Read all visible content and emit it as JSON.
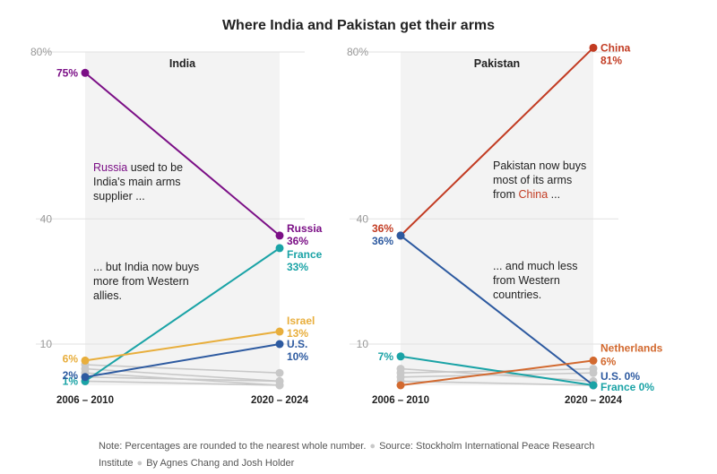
{
  "title": "Where India and Pakistan get their arms",
  "note": {
    "text": "Note: Percentages are rounded to the nearest whole number.",
    "source": "Source: Stockholm International Peace Research Institute",
    "byline": "By Agnes Chang and Josh Holder"
  },
  "colors": {
    "russia": "#7b0f86",
    "france": "#1aa3a6",
    "israel": "#e8ae3c",
    "us": "#2d5aa0",
    "china": "#c23b22",
    "netherlands": "#d2692f",
    "other": "#c8c8c8",
    "panel_bg": "#f3f3f3"
  },
  "chart_data": [
    {
      "type": "line",
      "subtitle": "India",
      "x": [
        "2006 – 2010",
        "2020 – 2024"
      ],
      "y_ticks": [
        "80%",
        "40",
        "10"
      ],
      "ylim": [
        0,
        80
      ],
      "series": [
        {
          "name": "Russia",
          "values": [
            75,
            36
          ],
          "start_label": "75%",
          "end_label": "Russia",
          "end_value_label": "36%",
          "color_key": "russia",
          "highlight": true
        },
        {
          "name": "France",
          "values": [
            1,
            33
          ],
          "start_label": "1%",
          "end_label": "France",
          "end_value_label": "33%",
          "color_key": "france",
          "highlight": true
        },
        {
          "name": "Israel",
          "values": [
            6,
            13
          ],
          "start_label": "6%",
          "end_label": "Israel",
          "end_value_label": "13%",
          "color_key": "israel",
          "highlight": true
        },
        {
          "name": "U.S.",
          "values": [
            2,
            10
          ],
          "start_label": "2%",
          "end_label": "U.S.",
          "end_value_label": "10%",
          "color_key": "us",
          "highlight": true
        },
        {
          "values": [
            5,
            3
          ],
          "color_key": "other"
        },
        {
          "values": [
            4,
            1
          ],
          "color_key": "other"
        },
        {
          "values": [
            3,
            0
          ],
          "color_key": "other"
        },
        {
          "values": [
            2,
            1
          ],
          "color_key": "other"
        },
        {
          "values": [
            1,
            0
          ],
          "color_key": "other"
        }
      ],
      "annotations": [
        {
          "parts": [
            {
              "text": "Russia",
              "color_key": "russia"
            },
            {
              "text": " used to be"
            }
          ],
          "line2": "India's main arms",
          "line3": "supplier ..."
        },
        {
          "line1": "... but India now buys",
          "line2": "more from Western",
          "line3": "allies."
        }
      ]
    },
    {
      "type": "line",
      "subtitle": "Pakistan",
      "x": [
        "2006 – 2010",
        "2020 – 2024"
      ],
      "y_ticks": [
        "80%",
        "40",
        "10"
      ],
      "ylim": [
        0,
        80
      ],
      "series": [
        {
          "name": "China",
          "values": [
            36,
            81
          ],
          "start_label": "36%",
          "end_label": "China",
          "end_value_label": "81%",
          "color_key": "china",
          "highlight": true
        },
        {
          "name": "U.S.",
          "values": [
            36,
            0
          ],
          "start_label": "36%",
          "end_label": "U.S. 0%",
          "color_key": "us",
          "highlight": true
        },
        {
          "name": "France",
          "values": [
            7,
            0
          ],
          "start_label": "7%",
          "end_label": "France 0%",
          "color_key": "france",
          "highlight": true
        },
        {
          "name": "Netherlands",
          "values": [
            0,
            6
          ],
          "end_label": "Netherlands",
          "end_value_label": "6%",
          "color_key": "netherlands",
          "highlight": true
        },
        {
          "values": [
            3,
            4
          ],
          "color_key": "other"
        },
        {
          "values": [
            2,
            3
          ],
          "color_key": "other"
        },
        {
          "values": [
            4,
            1
          ],
          "color_key": "other"
        },
        {
          "values": [
            1,
            0
          ],
          "color_key": "other"
        }
      ],
      "annotations": [
        {
          "line1": "Pakistan now buys",
          "line2": "most of its arms",
          "parts3": [
            {
              "text": "from "
            },
            {
              "text": "China",
              "color_key": "china"
            },
            {
              "text": " ..."
            }
          ]
        },
        {
          "line1": "... and much less",
          "line2": "from Western",
          "line3": "countries."
        }
      ]
    }
  ]
}
